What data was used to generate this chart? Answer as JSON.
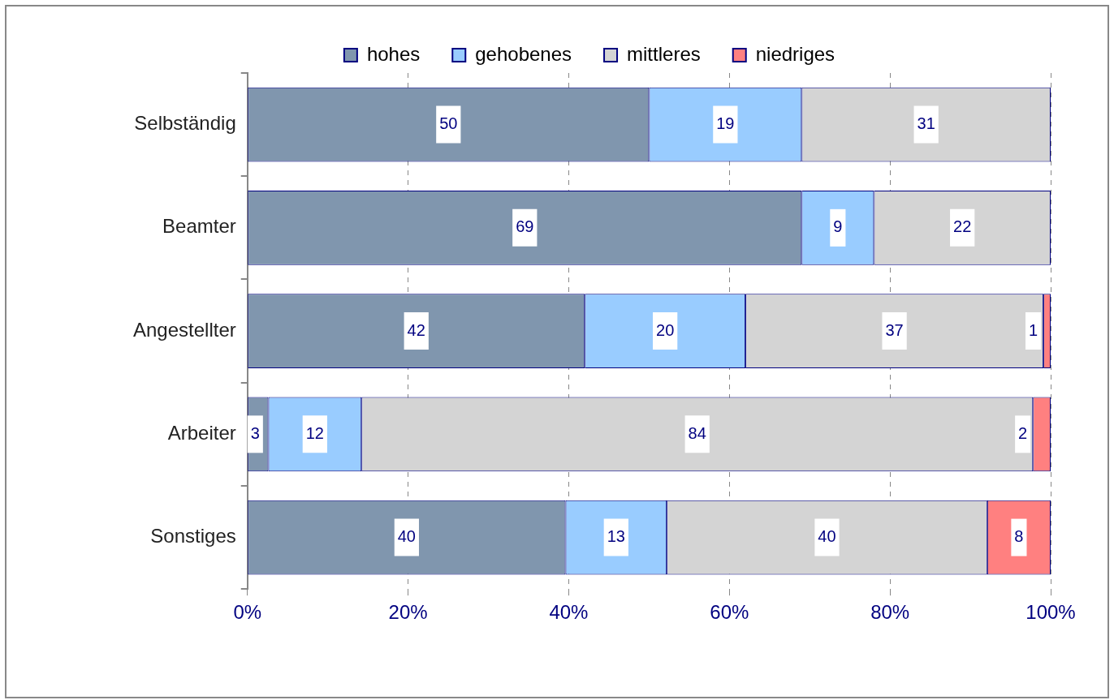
{
  "chart_data": {
    "type": "bar",
    "orientation": "horizontal",
    "stacked": true,
    "categories": [
      "Selbständig",
      "Beamter",
      "Angestellter",
      "Arbeiter",
      "Sonstiges"
    ],
    "series": [
      {
        "name": "hohes",
        "color": "#8096ae",
        "values": [
          50,
          69,
          42,
          2.6,
          39.6
        ],
        "value_labels": [
          "50",
          "69",
          "42",
          "3",
          "40"
        ]
      },
      {
        "name": "gehobenes",
        "color": "#99ccff",
        "values": [
          19,
          9,
          20,
          11.6,
          12.6
        ],
        "value_labels": [
          "19",
          "9",
          "20",
          "12",
          "13"
        ]
      },
      {
        "name": "mittleres",
        "color": "#d4d4d4",
        "values": [
          31,
          22,
          37.1,
          83.6,
          39.9
        ],
        "value_labels": [
          "31",
          "22",
          "37",
          "84",
          "40"
        ]
      },
      {
        "name": "niedriges",
        "color": "#ff8080",
        "values": [
          null,
          null,
          0.9,
          2.2,
          7.9
        ],
        "value_labels": [
          null,
          null,
          "1",
          "2",
          "8"
        ]
      }
    ],
    "xlim": [
      0,
      100
    ],
    "xticks": [
      {
        "value": 0,
        "label": "0%"
      },
      {
        "value": 20,
        "label": "20%"
      },
      {
        "value": 40,
        "label": "40%"
      },
      {
        "value": 60,
        "label": "60%"
      },
      {
        "value": 80,
        "label": "80%"
      },
      {
        "value": 100,
        "label": "100%"
      }
    ],
    "grid": "x",
    "legend": "top"
  }
}
